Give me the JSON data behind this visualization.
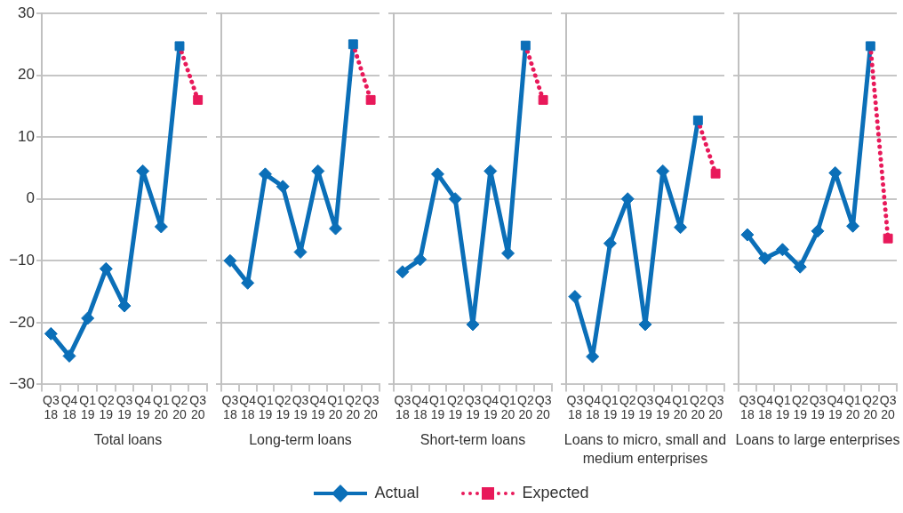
{
  "chart_data": [
    {
      "type": "line",
      "xlabel": "Total loans",
      "categories": [
        "Q3 18",
        "Q4 18",
        "Q1 19",
        "Q2 19",
        "Q3 19",
        "Q4 19",
        "Q1 20",
        "Q2 20",
        "Q3 20"
      ],
      "ylim": [
        -30,
        30
      ],
      "yticks": [
        -30,
        -20,
        -10,
        0,
        10,
        20,
        30
      ],
      "grid": "y",
      "legend": "bottom",
      "series": [
        {
          "name": "Actual",
          "color": "#0b6fb8",
          "marker": "diamond",
          "line_style": "solid",
          "values": [
            -21.8,
            -25.4,
            -19.3,
            -11.3,
            -17.3,
            4.5,
            -4.5,
            24.7,
            null
          ]
        },
        {
          "name": "Expected",
          "color": "#e8195a",
          "marker": "square",
          "line_style": "dotted",
          "colors": [
            null,
            null,
            null,
            null,
            null,
            null,
            null,
            "#0b6fb8",
            "#e8195a"
          ],
          "values": [
            null,
            null,
            null,
            null,
            null,
            null,
            null,
            24.7,
            16
          ]
        }
      ]
    },
    {
      "type": "line",
      "xlabel": "Long-term loans",
      "categories": [
        "Q3 18",
        "Q4 18",
        "Q1 19",
        "Q2 19",
        "Q3 19",
        "Q4 19",
        "Q1 20",
        "Q2 20",
        "Q3 20"
      ],
      "ylim": [
        -30,
        30
      ],
      "yticks": [
        -30,
        -20,
        -10,
        0,
        10,
        20,
        30
      ],
      "grid": "y",
      "tick_labels": "x",
      "series": [
        {
          "color": "#0b6fb8",
          "marker": "diamond",
          "line_style": "solid",
          "values": [
            -10,
            -13.6,
            4,
            2,
            -8.6,
            4.5,
            -4.8,
            25,
            null
          ]
        },
        {
          "color": "#e8195a",
          "marker": "square",
          "line_style": "dotted",
          "colors": [
            null,
            null,
            null,
            null,
            null,
            null,
            null,
            "#0b6fb8",
            "#e8195a"
          ],
          "values": [
            null,
            null,
            null,
            null,
            null,
            null,
            null,
            25,
            16
          ]
        }
      ]
    },
    {
      "type": "line",
      "xlabel": "Short-term loans",
      "categories": [
        "Q3 18",
        "Q4 18",
        "Q1 19",
        "Q2 19",
        "Q3 19",
        "Q4 19",
        "Q1 20",
        "Q2 20",
        "Q3 20"
      ],
      "ylim": [
        -30,
        30
      ],
      "yticks": [
        -30,
        -20,
        -10,
        0,
        10,
        20,
        30
      ],
      "grid": "y",
      "tick_labels": "x",
      "series": [
        {
          "color": "#0b6fb8",
          "marker": "diamond",
          "line_style": "solid",
          "values": [
            -11.8,
            -9.8,
            4,
            0,
            -20.3,
            4.5,
            -8.8,
            24.8,
            null
          ]
        },
        {
          "color": "#e8195a",
          "marker": "square",
          "line_style": "dotted",
          "colors": [
            null,
            null,
            null,
            null,
            null,
            null,
            null,
            "#0b6fb8",
            "#e8195a"
          ],
          "values": [
            null,
            null,
            null,
            null,
            null,
            null,
            null,
            24.8,
            16
          ]
        }
      ]
    },
    {
      "type": "line",
      "xlabel": "Loans to micro, small and medium enterprises",
      "categories": [
        "Q3 18",
        "Q4 18",
        "Q1 19",
        "Q2 19",
        "Q3 19",
        "Q4 19",
        "Q1 20",
        "Q2 20",
        "Q3 20"
      ],
      "ylim": [
        -30,
        30
      ],
      "yticks": [
        -30,
        -20,
        -10,
        0,
        10,
        20,
        30
      ],
      "grid": "y",
      "tick_labels": "x",
      "series": [
        {
          "color": "#0b6fb8",
          "marker": "diamond",
          "line_style": "solid",
          "values": [
            -15.8,
            -25.5,
            -7.2,
            0,
            -20.3,
            4.5,
            -4.6,
            12.7,
            null
          ]
        },
        {
          "color": "#e8195a",
          "marker": "square",
          "line_style": "dotted",
          "colors": [
            null,
            null,
            null,
            null,
            null,
            null,
            null,
            "#0b6fb8",
            "#e8195a"
          ],
          "values": [
            null,
            null,
            null,
            null,
            null,
            null,
            null,
            12.7,
            4.1
          ]
        }
      ]
    },
    {
      "type": "line",
      "xlabel": "Loans to large enterprises",
      "categories": [
        "Q3 18",
        "Q4 18",
        "Q1 19",
        "Q2 19",
        "Q3 19",
        "Q4 19",
        "Q1 20",
        "Q2 20",
        "Q3 20"
      ],
      "ylim": [
        -30,
        30
      ],
      "yticks": [
        -30,
        -20,
        -10,
        0,
        10,
        20,
        30
      ],
      "grid": "y",
      "tick_labels": "x",
      "series": [
        {
          "color": "#0b6fb8",
          "marker": "diamond",
          "line_style": "solid",
          "values": [
            -5.8,
            -9.6,
            -8.2,
            -11,
            -5.2,
            4.2,
            -4.4,
            24.7,
            null
          ]
        },
        {
          "color": "#e8195a",
          "marker": "square",
          "line_style": "dotted",
          "colors": [
            null,
            null,
            null,
            null,
            null,
            null,
            null,
            "#0b6fb8",
            "#e8195a"
          ],
          "values": [
            null,
            null,
            null,
            null,
            null,
            null,
            null,
            24.7,
            -6.4
          ]
        }
      ]
    }
  ]
}
